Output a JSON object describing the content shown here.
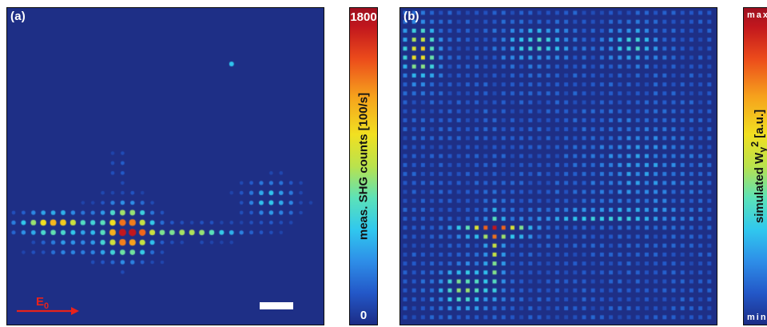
{
  "panel_a": {
    "label": "(a)",
    "field_label": "E",
    "field_subscript": "0",
    "arrow_color": "#e8221b",
    "colorbar": {
      "max": "1800",
      "min": "0",
      "title": "meas. SHG counts [100/s]"
    }
  },
  "panel_b": {
    "label": "(b)",
    "colorbar": {
      "max": "max",
      "min": "min",
      "title_prefix": "simulated W",
      "title_sub": "y",
      "title_sup": "2",
      "title_suffix": " [a.u.]"
    }
  },
  "colors": {
    "background": "#1e2f86",
    "scale_bar": "#ffffff",
    "colormap": [
      "#1c2c86",
      "#2358c8",
      "#2e8ee8",
      "#30c8ee",
      "#5ce2b8",
      "#b9e24d",
      "#f1e021",
      "#f6a21c",
      "#ec4b1b",
      "#c2171d"
    ]
  }
}
